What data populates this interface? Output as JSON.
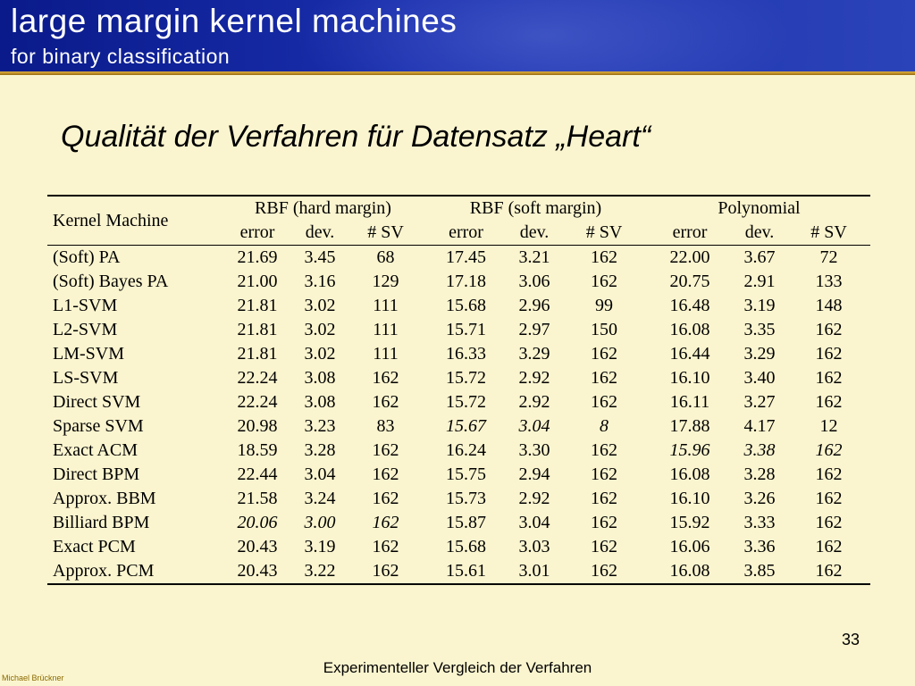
{
  "header": {
    "title": "large margin kernel machines",
    "subtitle": "for binary classification"
  },
  "slide_heading": "Qualität der Verfahren für Datensatz „Heart“",
  "table": {
    "row_label_header": "Kernel Machine",
    "groups": [
      "RBF (hard margin)",
      "RBF (soft margin)",
      "Polynomial"
    ],
    "subheaders": [
      "error",
      "dev.",
      "# SV"
    ],
    "rows": [
      {
        "name": "(Soft) PA",
        "cells": [
          [
            "21.69",
            ""
          ],
          [
            "3.45",
            ""
          ],
          [
            "68",
            ""
          ],
          [
            "17.45",
            ""
          ],
          [
            "3.21",
            ""
          ],
          [
            "162",
            ""
          ],
          [
            "22.00",
            ""
          ],
          [
            "3.67",
            ""
          ],
          [
            "72",
            ""
          ]
        ]
      },
      {
        "name": "(Soft) Bayes PA",
        "cells": [
          [
            "21.00",
            ""
          ],
          [
            "3.16",
            ""
          ],
          [
            "129",
            ""
          ],
          [
            "17.18",
            ""
          ],
          [
            "3.06",
            ""
          ],
          [
            "162",
            ""
          ],
          [
            "20.75",
            ""
          ],
          [
            "2.91",
            ""
          ],
          [
            "133",
            ""
          ]
        ]
      },
      {
        "name": "L1-SVM",
        "cells": [
          [
            "21.81",
            ""
          ],
          [
            "3.02",
            ""
          ],
          [
            "111",
            ""
          ],
          [
            "15.68",
            ""
          ],
          [
            "2.96",
            ""
          ],
          [
            "99",
            ""
          ],
          [
            "16.48",
            ""
          ],
          [
            "3.19",
            ""
          ],
          [
            "148",
            ""
          ]
        ]
      },
      {
        "name": "L2-SVM",
        "cells": [
          [
            "21.81",
            ""
          ],
          [
            "3.02",
            ""
          ],
          [
            "111",
            ""
          ],
          [
            "15.71",
            ""
          ],
          [
            "2.97",
            ""
          ],
          [
            "150",
            ""
          ],
          [
            "16.08",
            ""
          ],
          [
            "3.35",
            ""
          ],
          [
            "162",
            ""
          ]
        ]
      },
      {
        "name": "LM-SVM",
        "cells": [
          [
            "21.81",
            ""
          ],
          [
            "3.02",
            ""
          ],
          [
            "111",
            ""
          ],
          [
            "16.33",
            ""
          ],
          [
            "3.29",
            ""
          ],
          [
            "162",
            ""
          ],
          [
            "16.44",
            ""
          ],
          [
            "3.29",
            ""
          ],
          [
            "162",
            ""
          ]
        ]
      },
      {
        "name": "LS-SVM",
        "cells": [
          [
            "22.24",
            ""
          ],
          [
            "3.08",
            ""
          ],
          [
            "162",
            ""
          ],
          [
            "15.72",
            ""
          ],
          [
            "2.92",
            ""
          ],
          [
            "162",
            ""
          ],
          [
            "16.10",
            ""
          ],
          [
            "3.40",
            ""
          ],
          [
            "162",
            ""
          ]
        ]
      },
      {
        "name": "Direct SVM",
        "cells": [
          [
            "22.24",
            ""
          ],
          [
            "3.08",
            ""
          ],
          [
            "162",
            ""
          ],
          [
            "15.72",
            ""
          ],
          [
            "2.92",
            ""
          ],
          [
            "162",
            ""
          ],
          [
            "16.11",
            ""
          ],
          [
            "3.27",
            ""
          ],
          [
            "162",
            ""
          ]
        ]
      },
      {
        "name": "Sparse SVM",
        "cells": [
          [
            "20.98",
            ""
          ],
          [
            "3.23",
            ""
          ],
          [
            "83",
            ""
          ],
          [
            "15.67",
            "i"
          ],
          [
            "3.04",
            "i"
          ],
          [
            "8",
            "i"
          ],
          [
            "17.88",
            ""
          ],
          [
            "4.17",
            ""
          ],
          [
            "12",
            ""
          ]
        ]
      },
      {
        "name": "Exact ACM",
        "cells": [
          [
            "18.59",
            "b"
          ],
          [
            "3.28",
            "b"
          ],
          [
            "162",
            "b"
          ],
          [
            "16.24",
            ""
          ],
          [
            "3.30",
            ""
          ],
          [
            "162",
            ""
          ],
          [
            "15.96",
            "i"
          ],
          [
            "3.38",
            "i"
          ],
          [
            "162",
            "i"
          ]
        ]
      },
      {
        "name": "Direct BPM",
        "cells": [
          [
            "22.44",
            ""
          ],
          [
            "3.04",
            ""
          ],
          [
            "162",
            ""
          ],
          [
            "15.75",
            ""
          ],
          [
            "2.94",
            ""
          ],
          [
            "162",
            ""
          ],
          [
            "16.08",
            ""
          ],
          [
            "3.28",
            ""
          ],
          [
            "162",
            ""
          ]
        ]
      },
      {
        "name": "Approx. BBM",
        "cells": [
          [
            "21.58",
            ""
          ],
          [
            "3.24",
            ""
          ],
          [
            "162",
            ""
          ],
          [
            "15.73",
            ""
          ],
          [
            "2.92",
            ""
          ],
          [
            "162",
            ""
          ],
          [
            "16.10",
            ""
          ],
          [
            "3.26",
            ""
          ],
          [
            "162",
            ""
          ]
        ]
      },
      {
        "name": "Billiard BPM",
        "cells": [
          [
            "20.06",
            "i"
          ],
          [
            "3.00",
            "i"
          ],
          [
            "162",
            "i"
          ],
          [
            "15.87",
            ""
          ],
          [
            "3.04",
            ""
          ],
          [
            "162",
            ""
          ],
          [
            "15.92",
            "b"
          ],
          [
            "3.33",
            "b"
          ],
          [
            "162",
            "b"
          ]
        ]
      },
      {
        "name": "Exact PCM",
        "cells": [
          [
            "20.43",
            ""
          ],
          [
            "3.19",
            ""
          ],
          [
            "162",
            ""
          ],
          [
            "15.68",
            ""
          ],
          [
            "3.03",
            ""
          ],
          [
            "162",
            ""
          ],
          [
            "16.06",
            ""
          ],
          [
            "3.36",
            ""
          ],
          [
            "162",
            ""
          ]
        ]
      },
      {
        "name": "Approx. PCM",
        "cells": [
          [
            "20.43",
            ""
          ],
          [
            "3.22",
            ""
          ],
          [
            "162",
            ""
          ],
          [
            "15.61",
            "b"
          ],
          [
            "3.01",
            "b"
          ],
          [
            "162",
            "b"
          ],
          [
            "16.08",
            ""
          ],
          [
            "3.85",
            ""
          ],
          [
            "162",
            ""
          ]
        ]
      }
    ]
  },
  "page_number": "33",
  "footer": "Experimenteller Vergleich der Verfahren",
  "author": "Michael Brückner",
  "colors": {
    "background": "#fbf5cf",
    "header_blue": "#1a2fae",
    "gold_line": "#c9961f"
  }
}
